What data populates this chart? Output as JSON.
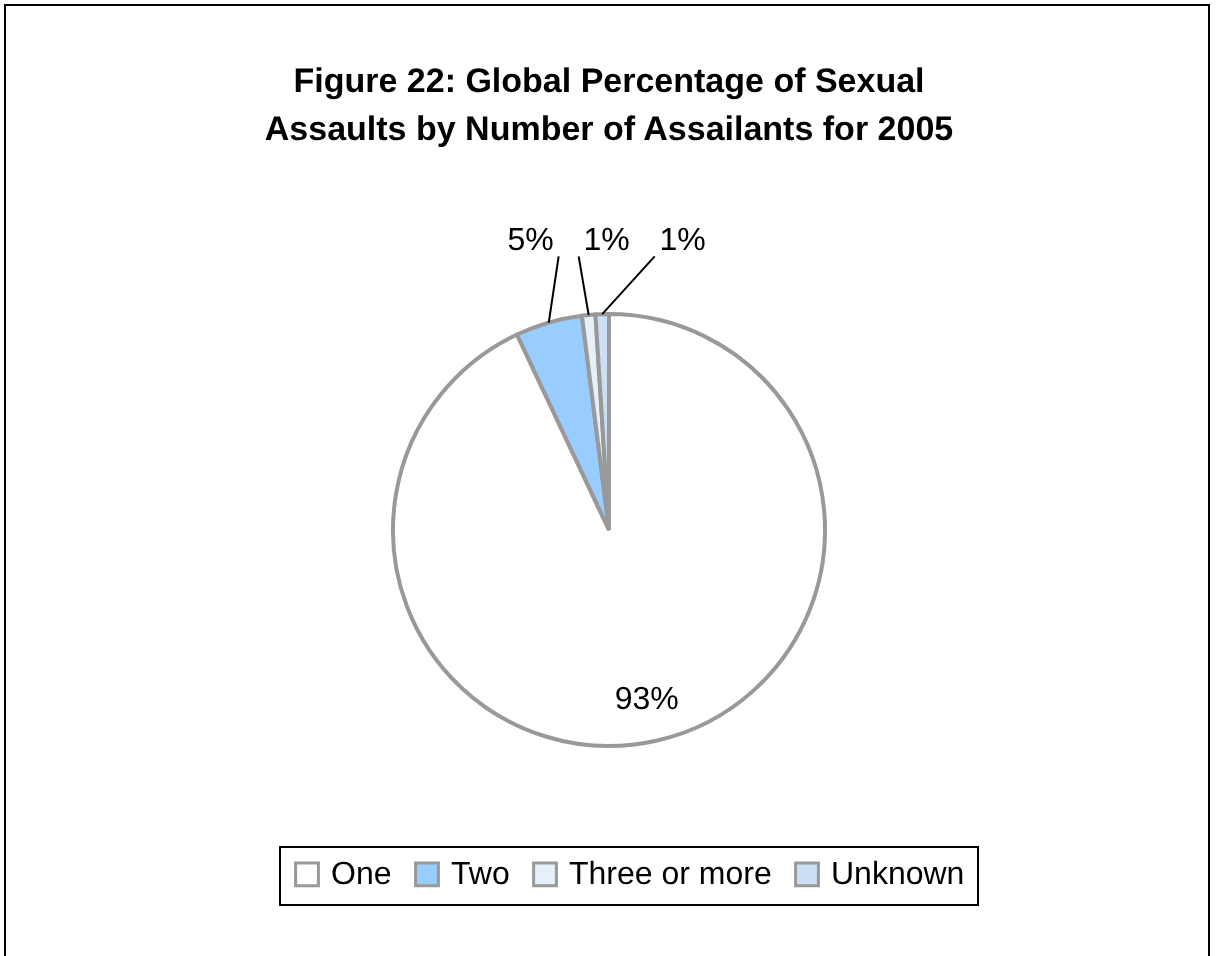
{
  "chart_data": {
    "type": "pie",
    "title": "Figure 22:  Global Percentage of Sexual Assaults by Number of Assailants for 2005",
    "categories": [
      "One",
      "Two",
      "Three or more",
      "Unknown"
    ],
    "values": [
      93,
      5,
      1,
      1
    ],
    "colors": [
      "#ffffff",
      "#99ccff",
      "#e6f0fa",
      "#cce0f5"
    ],
    "value_labels": [
      "93%",
      "5%",
      "1%",
      "1%"
    ],
    "legend": "bottom"
  }
}
